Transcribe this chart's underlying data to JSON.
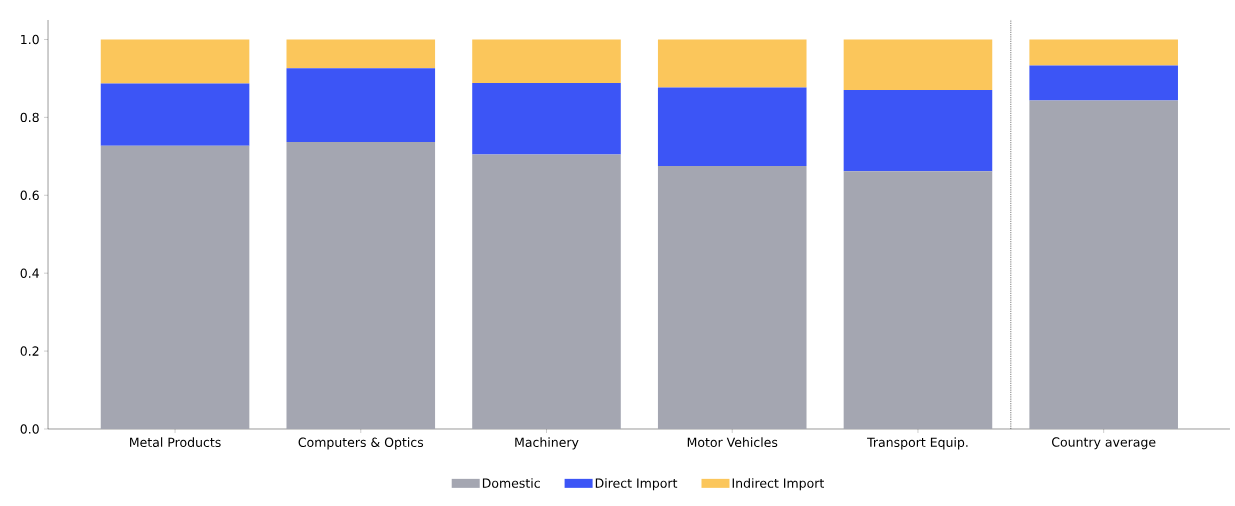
{
  "chart_data": {
    "type": "bar",
    "stacked": true,
    "categories": [
      "Metal Products",
      "Computers & Optics",
      "Machinery",
      "Motor Vehicles",
      "Transport Equip.",
      "Country average"
    ],
    "series": [
      {
        "name": "Domestic",
        "color": "#a4a6b1",
        "values": [
          0.727,
          0.737,
          0.705,
          0.675,
          0.662,
          0.843
        ]
      },
      {
        "name": "Direct Import",
        "color": "#3c55f6",
        "values": [
          0.16,
          0.189,
          0.183,
          0.202,
          0.208,
          0.09
        ]
      },
      {
        "name": "Indirect Import",
        "color": "#fbc65b",
        "values": [
          0.113,
          0.074,
          0.112,
          0.123,
          0.13,
          0.067
        ]
      }
    ],
    "ylim": [
      0,
      1.05
    ],
    "yticks": [
      {
        "value": 0,
        "label": "0.0"
      },
      {
        "value": 0.2,
        "label": "0.2"
      },
      {
        "value": 0.4,
        "label": "0.4"
      },
      {
        "value": 0.6,
        "label": "0.6"
      },
      {
        "value": 0.8,
        "label": "0.8"
      },
      {
        "value": 1.0,
        "label": "1.0"
      }
    ],
    "grid": false,
    "legend": "bottom"
  }
}
